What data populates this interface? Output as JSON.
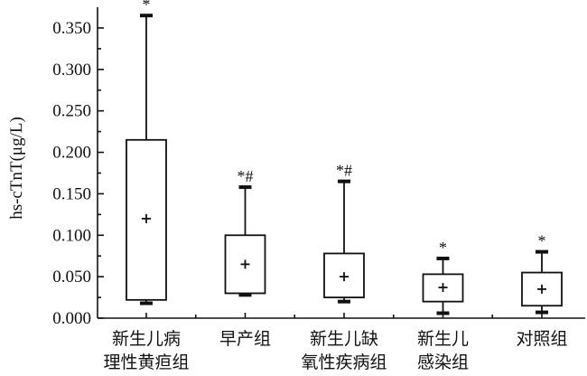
{
  "chart_data": {
    "type": "box",
    "ylabel": "hs-cTnT(μg/L)",
    "ylim": [
      0,
      0.375
    ],
    "yticks": [
      "0.000",
      "0.050",
      "0.100",
      "0.150",
      "0.200",
      "0.250",
      "0.300",
      "0.350"
    ],
    "categories": [
      {
        "line1": "新生儿病",
        "line2": "理性黄疸组"
      },
      {
        "line1": "早产组",
        "line2": ""
      },
      {
        "line1": "新生儿缺",
        "line2": "氧性疾病组"
      },
      {
        "line1": "新生儿",
        "line2": "感染组"
      },
      {
        "line1": "对照组",
        "line2": ""
      }
    ],
    "boxes": [
      {
        "min": 0.018,
        "q1": 0.022,
        "q3": 0.215,
        "max": 0.365,
        "mean": 0.12,
        "annotation": "*"
      },
      {
        "min": 0.028,
        "q1": 0.03,
        "q3": 0.1,
        "max": 0.158,
        "mean": 0.065,
        "annotation": "*#"
      },
      {
        "min": 0.02,
        "q1": 0.025,
        "q3": 0.078,
        "max": 0.165,
        "mean": 0.05,
        "annotation": "*#"
      },
      {
        "min": 0.006,
        "q1": 0.02,
        "q3": 0.053,
        "max": 0.072,
        "mean": 0.037,
        "annotation": "*"
      },
      {
        "min": 0.007,
        "q1": 0.015,
        "q3": 0.055,
        "max": 0.08,
        "mean": 0.035,
        "annotation": "*"
      }
    ]
  }
}
